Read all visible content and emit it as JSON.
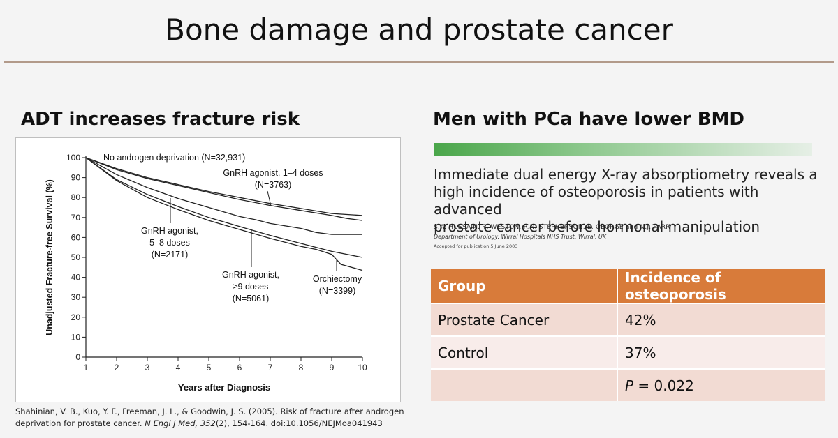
{
  "slide": {
    "title": "Bone damage and prostate cancer"
  },
  "left": {
    "heading": "ADT increases fracture risk",
    "citation_plain": "Shahinian, V. B., Kuo, Y. F., Freeman, J. L., & Goodwin, J. S. (2005). Risk of fracture after androgen deprivation for prostate cancer. ",
    "citation_journal": "N Engl J Med, 352",
    "citation_rest": "(2), 154-164. doi:10.1056/NEJMoa041943"
  },
  "right": {
    "heading": "Men with PCa have lower BMD",
    "paper": {
      "title_line1": "Immediate dual energy X-ray absorptiometry reveals a",
      "title_line2": "high incidence of osteoporosis in patients with advanced",
      "title_line3": "prostate cancer before hormonal manipulation",
      "authors": "S.A. HUSSAIN, R. WESTON, R.N. STEPHENSON, E. GEORGE and N.J. PARR",
      "affiliation": "Department of Urology, Wirral Hospitals NHS Trust, Wirral, UK",
      "accepted": "Accepted for publication 5 June 2003"
    },
    "table": {
      "headers": [
        "Group",
        "Incidence of osteoporosis"
      ],
      "rows": [
        [
          "Prostate Cancer",
          "42%"
        ],
        [
          "Control",
          "37%"
        ]
      ],
      "p_label": "P",
      "p_value": " = 0.022"
    }
  },
  "chart_data": {
    "type": "line",
    "xlabel": "Years after Diagnosis",
    "ylabel": "Unadjusted Fracture-free Survival (%)",
    "xlim": [
      1,
      10
    ],
    "ylim": [
      0,
      100
    ],
    "xticks": [
      1,
      2,
      3,
      4,
      5,
      6,
      7,
      8,
      9,
      10
    ],
    "yticks": [
      0,
      10,
      20,
      30,
      40,
      50,
      60,
      70,
      80,
      90,
      100
    ],
    "series": [
      {
        "name": "No androgen deprivation (N=32,931)",
        "x": [
          1,
          2,
          3,
          4,
          5,
          6,
          7,
          8,
          9,
          10
        ],
        "y": [
          100,
          94.5,
          90,
          86.5,
          83,
          80,
          77,
          74.5,
          72,
          71
        ]
      },
      {
        "name": "GnRH agonist, 1–4 doses (N=3763)",
        "x": [
          1,
          2,
          3,
          4,
          5,
          6,
          7,
          8,
          9,
          9.5,
          10
        ],
        "y": [
          100,
          94,
          89.5,
          86,
          82.5,
          79,
          76,
          73.5,
          71,
          69.5,
          68.5
        ]
      },
      {
        "name": "GnRH agonist, 5–8 doses (N=2171)",
        "x": [
          1,
          2,
          3,
          4,
          5,
          6,
          6.5,
          7,
          8,
          8.5,
          9,
          10
        ],
        "y": [
          100,
          91.5,
          85,
          79.5,
          75,
          70.5,
          69,
          67,
          64.5,
          62.5,
          61.5,
          61.5
        ]
      },
      {
        "name": "GnRH agonist, ≥9 doses (N=5061)",
        "x": [
          1,
          2,
          3,
          4,
          5,
          6,
          7,
          8,
          9,
          10
        ],
        "y": [
          100,
          89,
          81.5,
          75.5,
          70,
          65.5,
          61,
          57,
          53,
          50
        ]
      },
      {
        "name": "Orchiectomy (N=3399)",
        "x": [
          1,
          2,
          3,
          4,
          5,
          6,
          7,
          8,
          8.5,
          9,
          9.3,
          10
        ],
        "y": [
          100,
          88.5,
          80,
          74,
          68.5,
          64,
          59.5,
          55.5,
          54,
          51.5,
          46.5,
          43.5
        ]
      }
    ],
    "annotations": [
      {
        "label_lines": [
          "No androgen deprivation (N=32,931)"
        ],
        "series": 0
      },
      {
        "label_lines": [
          "GnRH agonist, 1–4 doses",
          "(N=3763)"
        ],
        "series": 1
      },
      {
        "label_lines": [
          "GnRH agonist,",
          "5–8 doses",
          "(N=2171)"
        ],
        "series": 2
      },
      {
        "label_lines": [
          "GnRH agonist,",
          "≥9 doses",
          "(N=5061)"
        ],
        "series": 3
      },
      {
        "label_lines": [
          "Orchiectomy",
          "(N=3399)"
        ],
        "series": 4
      }
    ]
  }
}
